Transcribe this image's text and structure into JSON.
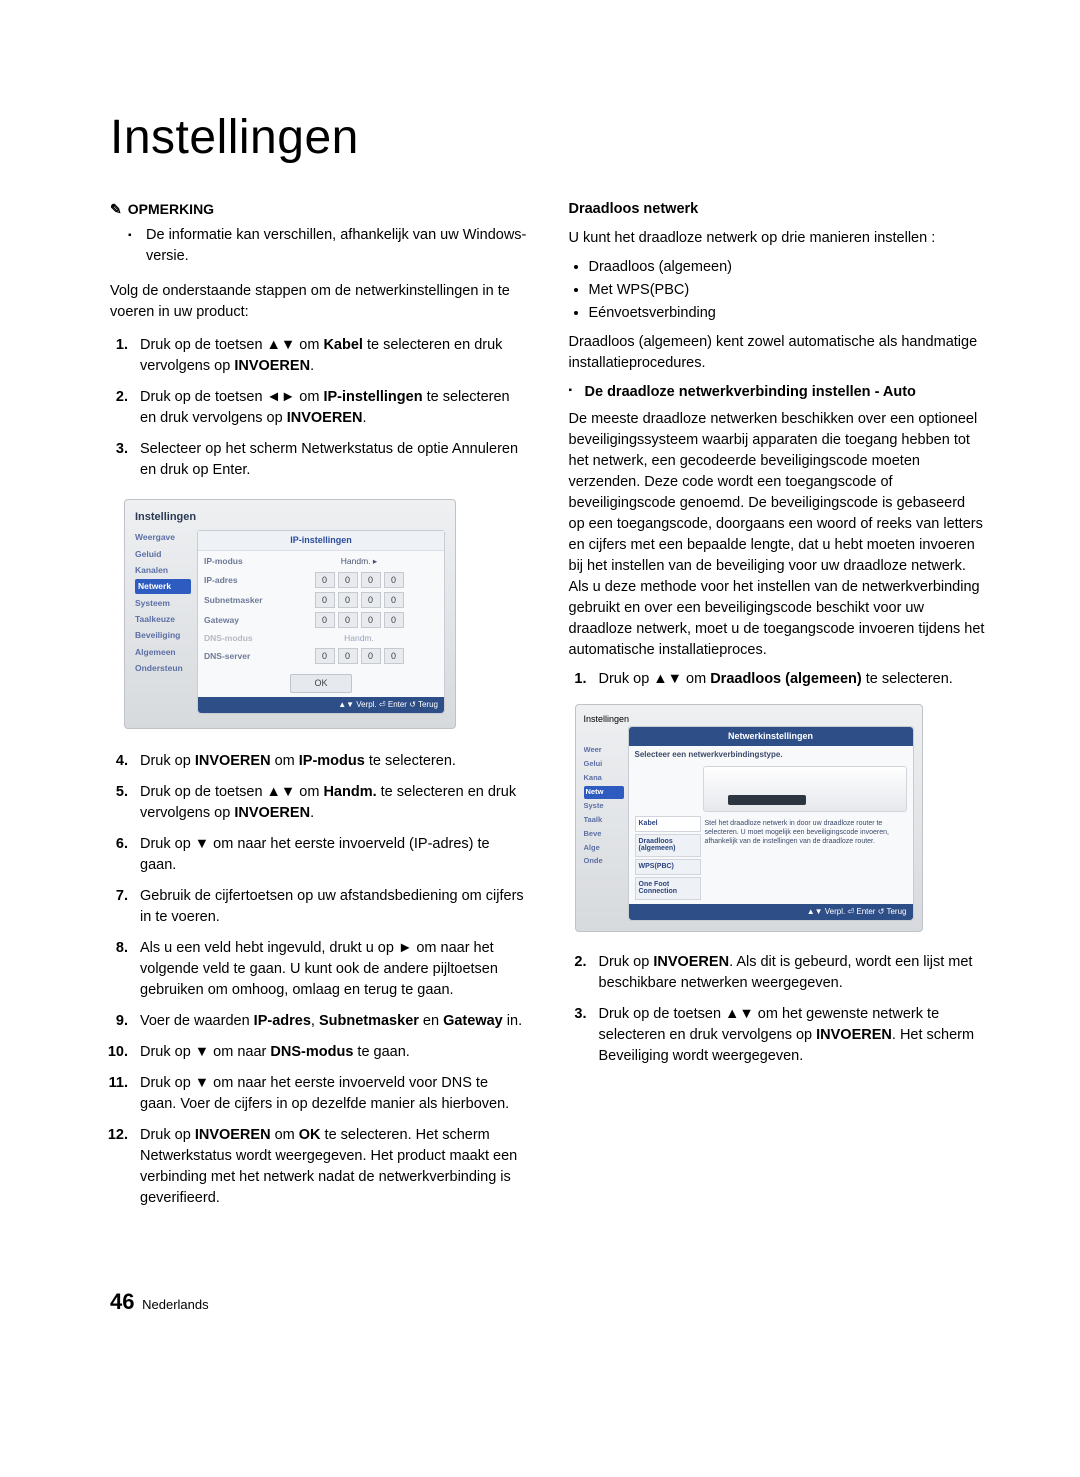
{
  "title": "Instellingen",
  "note": {
    "heading": "OPMERKING",
    "item": "De informatie kan verschillen, afhankelijk van uw Windows-versie."
  },
  "intro": "Volg de onderstaande stappen om de netwerkinstellingen in te voeren in uw product:",
  "stepsA": [
    "Druk op de toetsen ▲▼ om <b>Kabel</b> te selecteren en druk vervolgens op <b>INVOEREN</b>.",
    "Druk op de toetsen ◄► om <b>IP-instellingen</b> te selecteren en druk vervolgens op <b>INVOEREN</b>.",
    "Selecteer op het scherm Netwerkstatus de optie Annuleren en druk op Enter."
  ],
  "fig1": {
    "title": "Instellingen",
    "panelTitle": "IP-instellingen",
    "sidebar": [
      "Weergave",
      "Geluid",
      "Kanalen",
      "Netwerk",
      "Systeem",
      "Taalkeuze",
      "Beveiliging",
      "Algemeen",
      "Ondersteun"
    ],
    "activeSidebarIndex": 3,
    "rows": [
      {
        "label": "IP-modus",
        "type": "select",
        "value": "Handm.",
        "arrow": true
      },
      {
        "label": "IP-adres",
        "type": "octets",
        "values": [
          "0",
          "0",
          "0",
          "0"
        ]
      },
      {
        "label": "Subnetmasker",
        "type": "octets",
        "values": [
          "0",
          "0",
          "0",
          "0"
        ]
      },
      {
        "label": "Gateway",
        "type": "octets",
        "values": [
          "0",
          "0",
          "0",
          "0"
        ]
      },
      {
        "label": "DNS-modus",
        "type": "dim",
        "value": "Handm."
      },
      {
        "label": "DNS-server",
        "type": "octets",
        "values": [
          "0",
          "0",
          "0",
          "0"
        ]
      }
    ],
    "ok": "OK",
    "footer": "▲▼ Verpl.   ⏎ Enter   ↺ Terug"
  },
  "stepsB": [
    "Druk op <b>INVOEREN</b> om <b>IP-modus</b> te selecteren.",
    "Druk op de toetsen ▲▼ om <b>Handm.</b> te selecteren en druk vervolgens op <b>INVOEREN</b>.",
    "Druk op ▼ om naar het eerste invoerveld (IP-adres) te gaan.",
    "Gebruik de cijfertoetsen op uw afstandsbediening om cijfers in te voeren.",
    "Als u een veld hebt ingevuld, drukt u op ► om naar het volgende veld te gaan. U kunt ook de andere pijltoetsen gebruiken om omhoog, omlaag en terug te gaan.",
    "Voer de waarden <b>IP-adres</b>, <b>Subnetmasker</b> en <b>Gateway</b> in.",
    "Druk op ▼ om naar <b>DNS-modus</b> te gaan.",
    "Druk op ▼ om naar het eerste invoerveld voor DNS te gaan. Voer de cijfers in op dezelfde manier als hierboven.",
    "Druk op <b>INVOEREN</b> om <b>OK</b> te selecteren. Het scherm Netwerkstatus wordt weergegeven. Het product maakt een verbinding met het netwerk nadat de netwerkverbinding is geverifieerd."
  ],
  "right": {
    "heading": "Draadloos netwerk",
    "intro": "U kunt het draadloze netwerk op drie manieren instellen :",
    "bullets": [
      "Draadloos (algemeen)",
      "Met WPS(PBC)",
      "Eénvoetsverbinding"
    ],
    "after": "Draadloos (algemeen) kent zowel automatische als handmatige installatieprocedures.",
    "subhead": "De draadloze netwerkverbinding instellen - Auto",
    "para": "De meeste draadloze netwerken beschikken over een optioneel beveiligingssysteem waarbij apparaten die toegang hebben tot het netwerk, een gecodeerde beveiligingscode moeten verzenden. Deze code wordt een toegangscode of beveiligingscode genoemd. De beveiligingscode is gebaseerd op een toegangscode, doorgaans een woord of reeks van letters en cijfers met een bepaalde lengte, dat u hebt moeten invoeren bij het instellen van de beveiliging voor uw draadloze netwerk. Als u deze methode voor het instellen van de netwerkverbinding gebruikt en over een beveiligingscode beschikt voor uw draadloze netwerk, moet u de toegangscode invoeren tijdens het automatische installatieproces.",
    "stepsR1": [
      "Druk op ▲▼ om <b>Draadloos (algemeen)</b> te selecteren."
    ],
    "stepsR2": [
      "Druk op <b>INVOEREN</b>. Als dit is gebeurd, wordt een lijst met beschikbare netwerken weergegeven.",
      "Druk op de toetsen ▲▼ om het gewenste netwerk te selecteren en druk vervolgens op <b>INVOEREN</b>. Het scherm Beveiliging wordt weergegeven."
    ]
  },
  "fig2": {
    "title": "Instellingen",
    "panelTitle": "Netwerkinstellingen",
    "subtitle": "Selecteer een netwerkverbindingstype.",
    "sidebar": [
      "Weer",
      "Gelui",
      "Kana",
      "Netw",
      "Syste",
      "Taalk",
      "Beve",
      "Alge",
      "Onde"
    ],
    "activeSidebarIndex": 3,
    "options": [
      "Kabel",
      "Draadloos (algemeen)",
      "WPS(PBC)",
      "One Foot Connection"
    ],
    "desc": "Stel het draadloze netwerk in door uw draadloze router te selecteren. U moet mogelijk een beveiligingscode invoeren, afhankelijk van de instellingen van de draadloze router.",
    "footer": "▲▼ Verpl.   ⏎ Enter   ↺ Terug"
  },
  "footer": {
    "page": "46",
    "lang": "Nederlands"
  }
}
